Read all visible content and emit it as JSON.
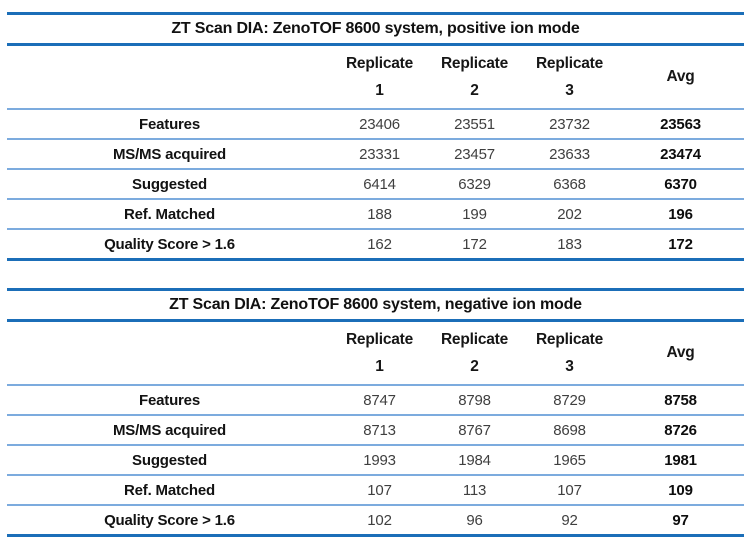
{
  "colors": {
    "rule_heavy": "#1b6eb8",
    "rule_light": "#7cabde",
    "text_label": "#121212",
    "text_value": "#3f3f3f",
    "background": "#ffffff"
  },
  "tables": [
    {
      "title": "ZT Scan DIA: ZenoTOF 8600 system, positive ion mode",
      "header": {
        "replicate": "Replicate",
        "rep1": "1",
        "rep2": "2",
        "rep3": "3",
        "avg": "Avg"
      },
      "rows": [
        {
          "label": "Features",
          "r1": "23406",
          "r2": "23551",
          "r3": "23732",
          "avg": "23563"
        },
        {
          "label": "MS/MS acquired",
          "r1": "23331",
          "r2": "23457",
          "r3": "23633",
          "avg": "23474"
        },
        {
          "label": "Suggested",
          "r1": "6414",
          "r2": "6329",
          "r3": "6368",
          "avg": "6370"
        },
        {
          "label": "Ref. Matched",
          "r1": "188",
          "r2": "199",
          "r3": "202",
          "avg": "196"
        },
        {
          "label": "Quality Score > 1.6",
          "r1": "162",
          "r2": "172",
          "r3": "183",
          "avg": "172"
        }
      ]
    },
    {
      "title": "ZT Scan DIA: ZenoTOF 8600 system, negative ion mode",
      "header": {
        "replicate": "Replicate",
        "rep1": "1",
        "rep2": "2",
        "rep3": "3",
        "avg": "Avg"
      },
      "rows": [
        {
          "label": "Features",
          "r1": "8747",
          "r2": "8798",
          "r3": "8729",
          "avg": "8758"
        },
        {
          "label": "MS/MS acquired",
          "r1": "8713",
          "r2": "8767",
          "r3": "8698",
          "avg": "8726"
        },
        {
          "label": "Suggested",
          "r1": "1993",
          "r2": "1984",
          "r3": "1965",
          "avg": "1981"
        },
        {
          "label": "Ref. Matched",
          "r1": "107",
          "r2": "113",
          "r3": "107",
          "avg": "109"
        },
        {
          "label": "Quality Score > 1.6",
          "r1": "102",
          "r2": "96",
          "r3": "92",
          "avg": "97"
        }
      ]
    }
  ]
}
